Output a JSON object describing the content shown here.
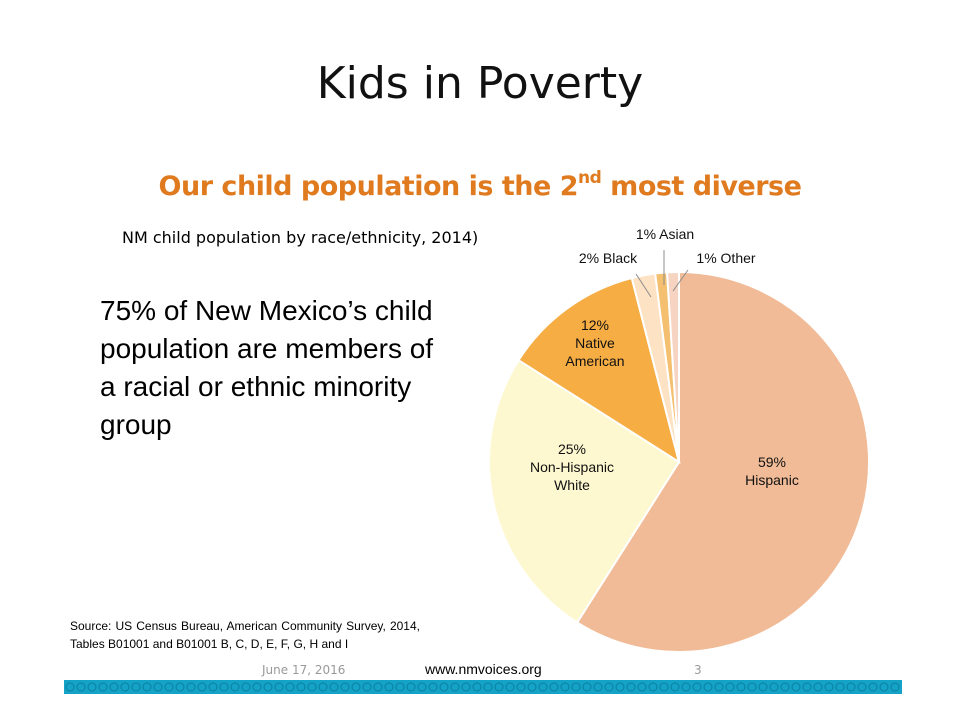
{
  "slide": {
    "title": "Kids in Poverty",
    "subtitle_main": "Our child population is the 2",
    "subtitle_sup": "nd",
    "subtitle_end": " most diverse",
    "caption": "NM child population by race/ethnicity, 2014)",
    "stat_text": "75% of New Mexico’s child population are members of a racial or ethnic minority group",
    "source": "Source: US Census Bureau, American Community Survey, 2014, Tables B01001 and B01001 B, C, D, E, F, G, H and I"
  },
  "footer": {
    "date": "June 17, 2016",
    "url": "www.nmvoices.org",
    "page": "3",
    "band_color": "#14a3c7"
  },
  "colors": {
    "subtitle": "#e07a1f"
  },
  "chart_data": {
    "type": "pie",
    "title": "",
    "slices": [
      {
        "name": "Hispanic",
        "value": 59,
        "pct_label": "59%",
        "label_lines": [
          "Hispanic"
        ],
        "color": "#f0bb96"
      },
      {
        "name": "Non-Hispanic White",
        "value": 25,
        "pct_label": "25%",
        "label_lines": [
          "Non-Hispanic",
          "White"
        ],
        "color": "#fdf8cf"
      },
      {
        "name": "Native American",
        "value": 12,
        "pct_label": "12%",
        "label_lines": [
          "Native",
          "American"
        ],
        "color": "#f6ad44"
      },
      {
        "name": "Black",
        "value": 2,
        "pct_label": "2% Black",
        "label_lines": [],
        "color": "#fde2c4"
      },
      {
        "name": "Asian",
        "value": 1,
        "pct_label": "1% Asian",
        "label_lines": [],
        "color": "#f4bf6e"
      },
      {
        "name": "Other",
        "value": 1,
        "pct_label": "1% Other",
        "label_lines": [],
        "color": "#f6d4c1"
      }
    ]
  }
}
